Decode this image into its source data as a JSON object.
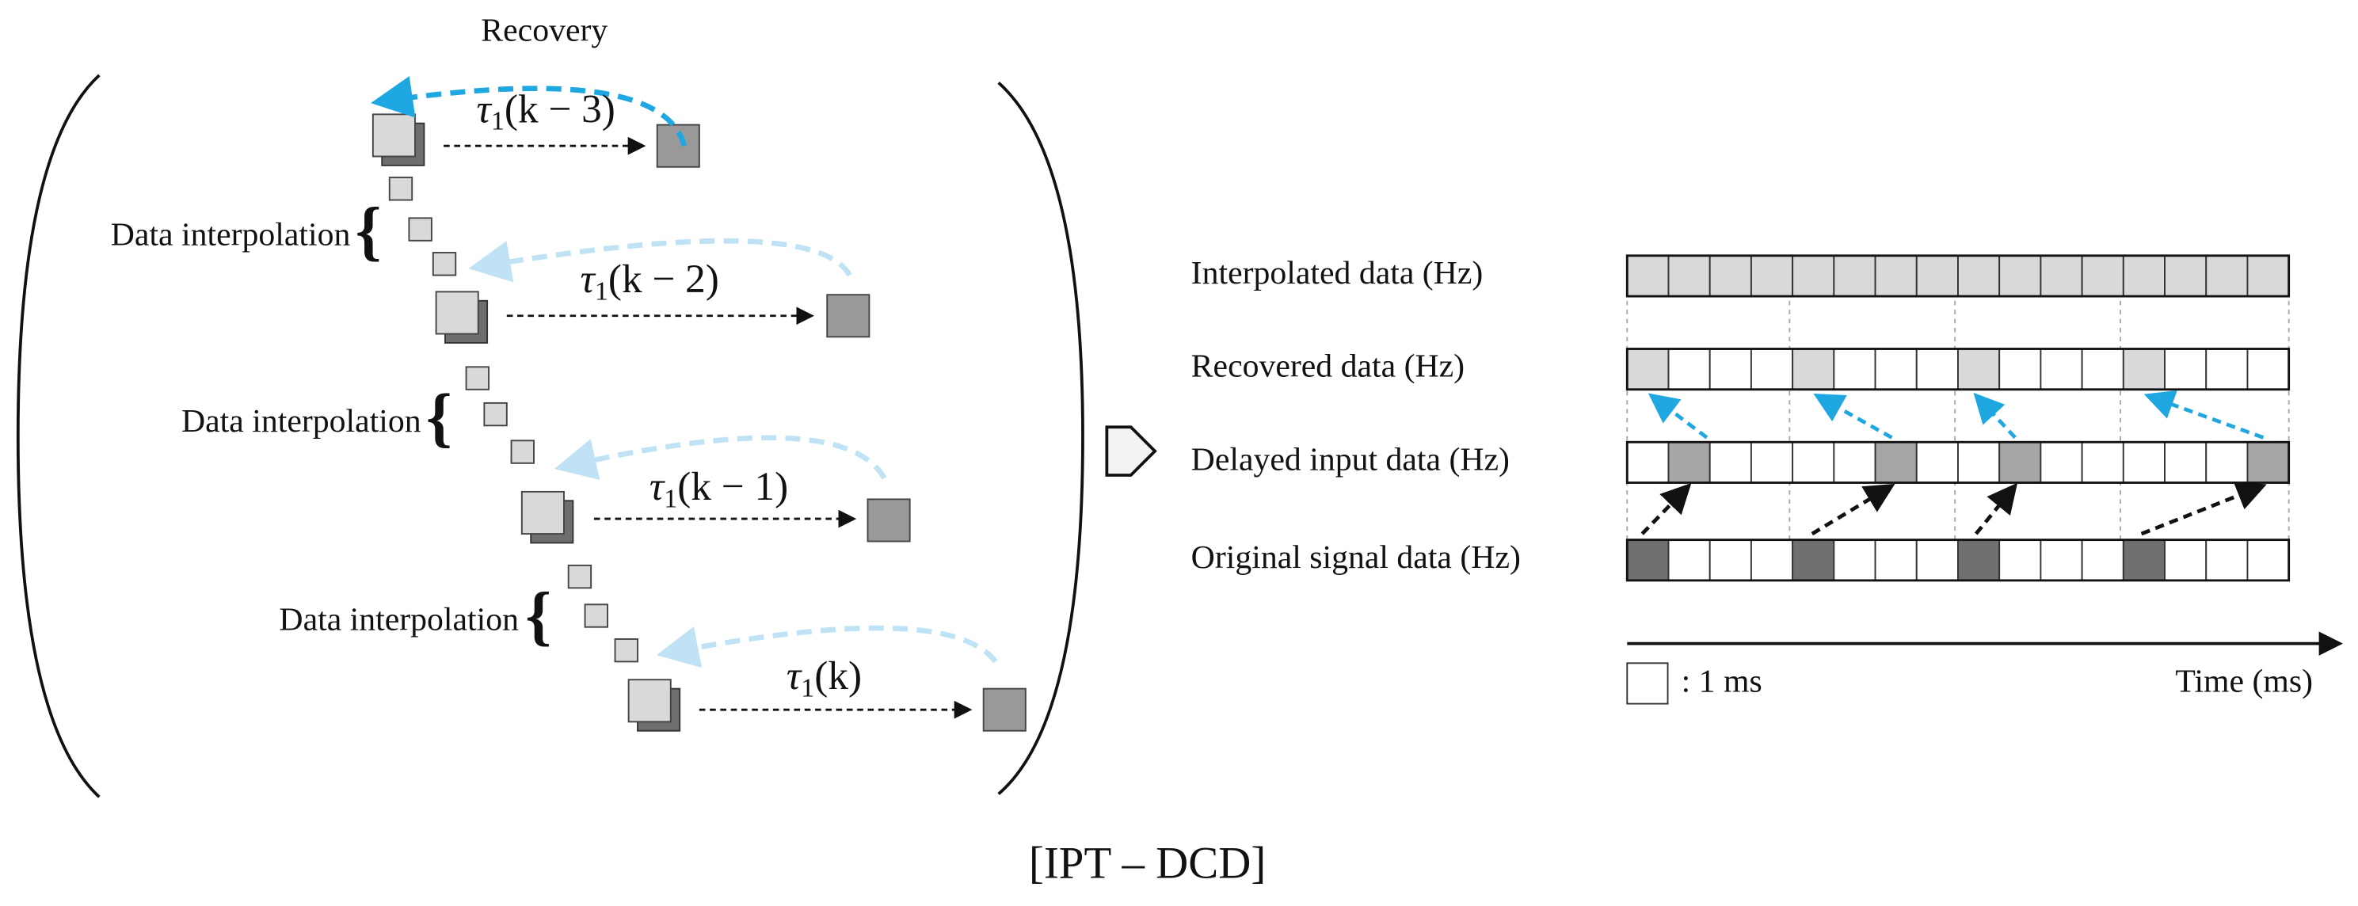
{
  "left": {
    "recovery": "Recovery",
    "delays": [
      {
        "base": "τ",
        "sub": "1",
        "arg": "(k − 3)"
      },
      {
        "base": "τ",
        "sub": "1",
        "arg": "(k − 2)"
      },
      {
        "base": "τ",
        "sub": "1",
        "arg": "(k − 1)"
      },
      {
        "base": "τ",
        "sub": "1",
        "arg": "(k)"
      }
    ],
    "interpolation": [
      "Data interpolation",
      "Data interpolation",
      "Data interpolation"
    ]
  },
  "right": {
    "rows": [
      "Interpolated data (Hz)",
      "Recovered data (Hz)",
      "Delayed input data (Hz)",
      "Original signal data (Hz)"
    ],
    "legend": ": 1 ms",
    "axis": "Time (ms)"
  },
  "caption": "[IPT – DCD]"
}
